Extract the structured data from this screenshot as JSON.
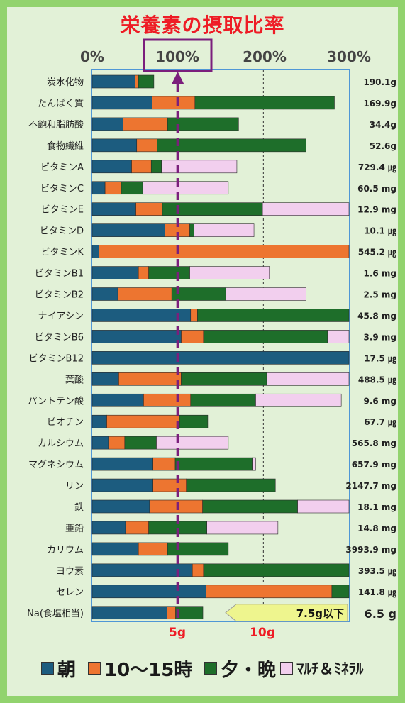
{
  "colors": {
    "morning": "#1c5c7f",
    "snack": "#ed7530",
    "evening": "#1e6e2a",
    "supplement": "#f2cfee",
    "target_line": "#7b1f7c",
    "na_limit_box": "#eef58e",
    "frame": "#4f97d6"
  },
  "legend": [
    {
      "key": "morning",
      "label": "朝"
    },
    {
      "key": "snack",
      "label": "10～15時"
    },
    {
      "key": "evening",
      "label": "夕・晩"
    },
    {
      "key": "supplement",
      "label": "ﾏﾙﾁ＆ﾐﾈﾗﾙ"
    }
  ],
  "na_limit_label": "7.5g以下",
  "chart_data": {
    "type": "stacked_horizontal_bar",
    "title": "栄養素の摂取比率",
    "x_ticks": [
      "0%",
      "100%",
      "200%",
      "300%"
    ],
    "x_range_percent": [
      0,
      300
    ],
    "bottom_ticks": [
      "5g",
      "10g"
    ],
    "bottom_tick_values_g": [
      5,
      10
    ],
    "target_percent": 100,
    "series": [
      "朝",
      "10～15時",
      "夕・晩",
      "ﾏﾙﾁ＆ﾐﾈﾗﾙ"
    ],
    "rows": [
      {
        "name": "炭水化物",
        "amount": "190.1g",
        "values": [
          50,
          4,
          18,
          0
        ]
      },
      {
        "name": "たんぱく質",
        "amount": "169.9g",
        "values": [
          70,
          50,
          163,
          0
        ]
      },
      {
        "name": "不飽和脂肪酸",
        "amount": "34.4g",
        "values": [
          36,
          52,
          83,
          0
        ]
      },
      {
        "name": "食物繊維",
        "amount": "52.6g",
        "values": [
          52,
          24,
          174,
          0
        ]
      },
      {
        "name": "ビタミンA",
        "amount": "729.4 ㎍",
        "values": [
          46,
          23,
          12,
          88
        ]
      },
      {
        "name": "ビタミンC",
        "amount": "60.5 mg",
        "values": [
          15,
          19,
          25,
          100
        ]
      },
      {
        "name": "ビタミンE",
        "amount": "12.9 mg",
        "values": [
          51,
          31,
          117,
          101
        ]
      },
      {
        "name": "ビタミンD",
        "amount": "10.1 ㎍",
        "values": [
          85,
          29,
          5,
          70
        ]
      },
      {
        "name": "ビタミンK",
        "amount": "545.2 ㎍",
        "values": [
          8,
          292,
          0,
          0
        ]
      },
      {
        "name": "ビタミンB1",
        "amount": "1.6 mg",
        "values": [
          54,
          12,
          48,
          93
        ]
      },
      {
        "name": "ビタミンB2",
        "amount": "2.5 mg",
        "values": [
          30,
          63,
          63,
          94
        ]
      },
      {
        "name": "ナイアシン",
        "amount": "45.8 mg",
        "values": [
          115,
          8,
          177,
          0
        ]
      },
      {
        "name": "ビタミンB6",
        "amount": "3.9 mg",
        "values": [
          104,
          26,
          145,
          25
        ]
      },
      {
        "name": "ビタミンB12",
        "amount": "17.5 ㎍",
        "values": [
          300,
          0,
          0,
          0
        ]
      },
      {
        "name": "葉酸",
        "amount": "488.5 ㎍",
        "values": [
          31,
          73,
          100,
          96
        ]
      },
      {
        "name": "パントテン酸",
        "amount": "9.6 mg",
        "values": [
          60,
          55,
          76,
          100
        ]
      },
      {
        "name": "ビオチン",
        "amount": "67.7 ㎍",
        "values": [
          17,
          85,
          33,
          0
        ]
      },
      {
        "name": "カルシウム",
        "amount": "565.8 mg",
        "values": [
          19,
          19,
          37,
          84
        ]
      },
      {
        "name": "マグネシウム",
        "amount": "657.9 mg",
        "values": [
          71,
          26,
          90,
          4
        ]
      },
      {
        "name": "リン",
        "amount": "2147.7 mg",
        "values": [
          71,
          39,
          104,
          0
        ]
      },
      {
        "name": "鉄",
        "amount": "18.1 mg",
        "values": [
          67,
          62,
          111,
          60
        ]
      },
      {
        "name": "亜鉛",
        "amount": "14.8 mg",
        "values": [
          39,
          27,
          68,
          83
        ]
      },
      {
        "name": "カリウム",
        "amount": "3993.9 mg",
        "values": [
          54,
          34,
          71,
          0
        ]
      },
      {
        "name": "ヨウ素",
        "amount": "393.5 ㎍",
        "values": [
          117,
          13,
          170,
          0
        ]
      },
      {
        "name": "セレン",
        "amount": "141.8 ㎍",
        "values": [
          133,
          147,
          20,
          0
        ]
      }
    ],
    "na_row": {
      "name": "Na(食塩相当)",
      "amount": "6.5 g",
      "values_g": [
        4.4,
        0.5,
        1.6,
        0
      ]
    }
  }
}
